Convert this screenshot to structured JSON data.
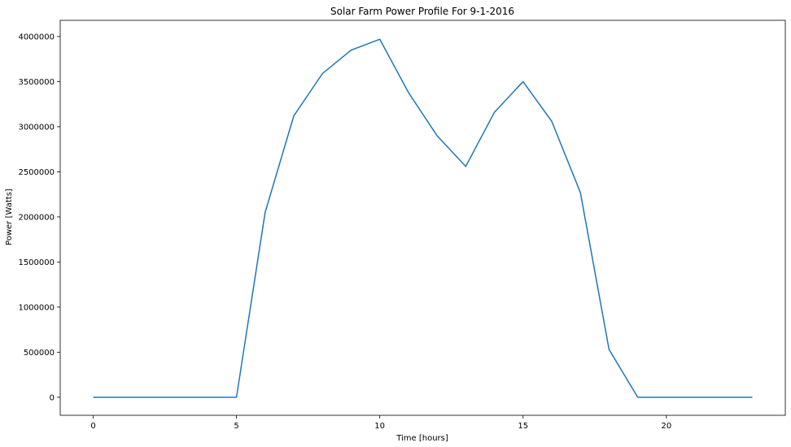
{
  "chart_data": {
    "type": "line",
    "title": "Solar Farm Power Profile For 9-1-2016",
    "xlabel": "Time [hours]",
    "ylabel": "Power [Watts]",
    "xlim": [
      -1.15,
      24.15
    ],
    "ylim": [
      -200000,
      4180000
    ],
    "xticks": [
      0,
      5,
      10,
      15,
      20
    ],
    "yticks": [
      0,
      500000,
      1000000,
      1500000,
      2000000,
      2500000,
      3000000,
      3500000,
      4000000
    ],
    "grid": false,
    "line_color": "#1f77b4",
    "series": [
      {
        "x": [
          0,
          1,
          2,
          3,
          4,
          5,
          6,
          7,
          8,
          9,
          10,
          11,
          12,
          13,
          14,
          15,
          16,
          17,
          18,
          19,
          20,
          21,
          22,
          23
        ],
        "values": [
          0,
          0,
          0,
          0,
          0,
          0,
          2050000,
          3120000,
          3590000,
          3850000,
          3970000,
          3380000,
          2900000,
          2560000,
          3160000,
          3500000,
          3060000,
          2270000,
          530000,
          0,
          0,
          0,
          0,
          0
        ]
      }
    ]
  }
}
